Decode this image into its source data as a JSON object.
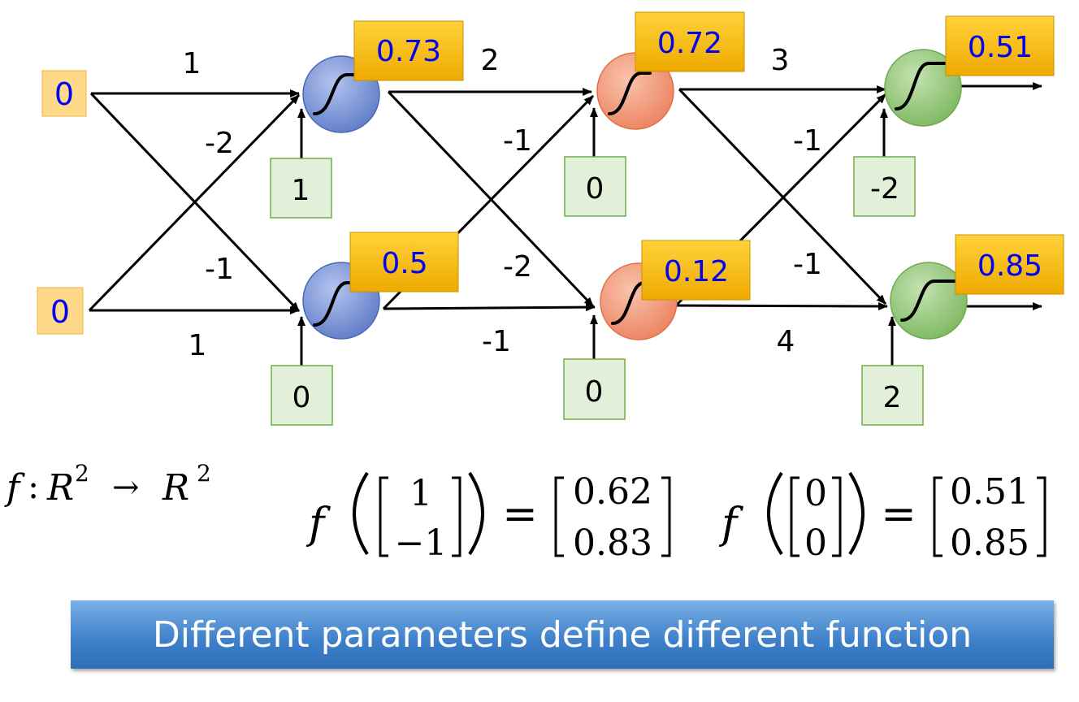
{
  "inputs": [
    "0",
    "0"
  ],
  "weights": {
    "layer1": [
      "1",
      "-2",
      "-1",
      "1"
    ],
    "layer2": [
      "2",
      "-1",
      "-2",
      "-1"
    ],
    "layer3": [
      "3",
      "-1",
      "-1",
      "4"
    ]
  },
  "biases": [
    "1",
    "0",
    "0",
    "0",
    "-2",
    "2"
  ],
  "outputs": [
    "0.73",
    "0.5",
    "0.72",
    "0.12",
    "0.51",
    "0.85"
  ],
  "colors": {
    "layer1_neuron": "#7a93d6",
    "layer2_neuron": "#f2a081",
    "layer3_neuron": "#94c77a",
    "input_box": "#ffd98a",
    "bias_box": "#e2f0d9",
    "output_box": "#f5b800"
  },
  "icons": [
    "sigmoid-icon",
    "arrow-icon"
  ],
  "formulas": {
    "signature": {
      "f": "f",
      "colon": ":",
      "domain": "R",
      "arrow": "→",
      "codomain": "R",
      "exponent": "2"
    },
    "example1": {
      "f": "f",
      "input": [
        "1",
        "−1"
      ],
      "equals": "=",
      "output": [
        "0.62",
        "0.83"
      ]
    },
    "example2": {
      "f": "f",
      "input": [
        "0",
        "0"
      ],
      "equals": "=",
      "output": [
        "0.51",
        "0.85"
      ]
    }
  },
  "banner": {
    "text": "Different parameters define different function"
  }
}
